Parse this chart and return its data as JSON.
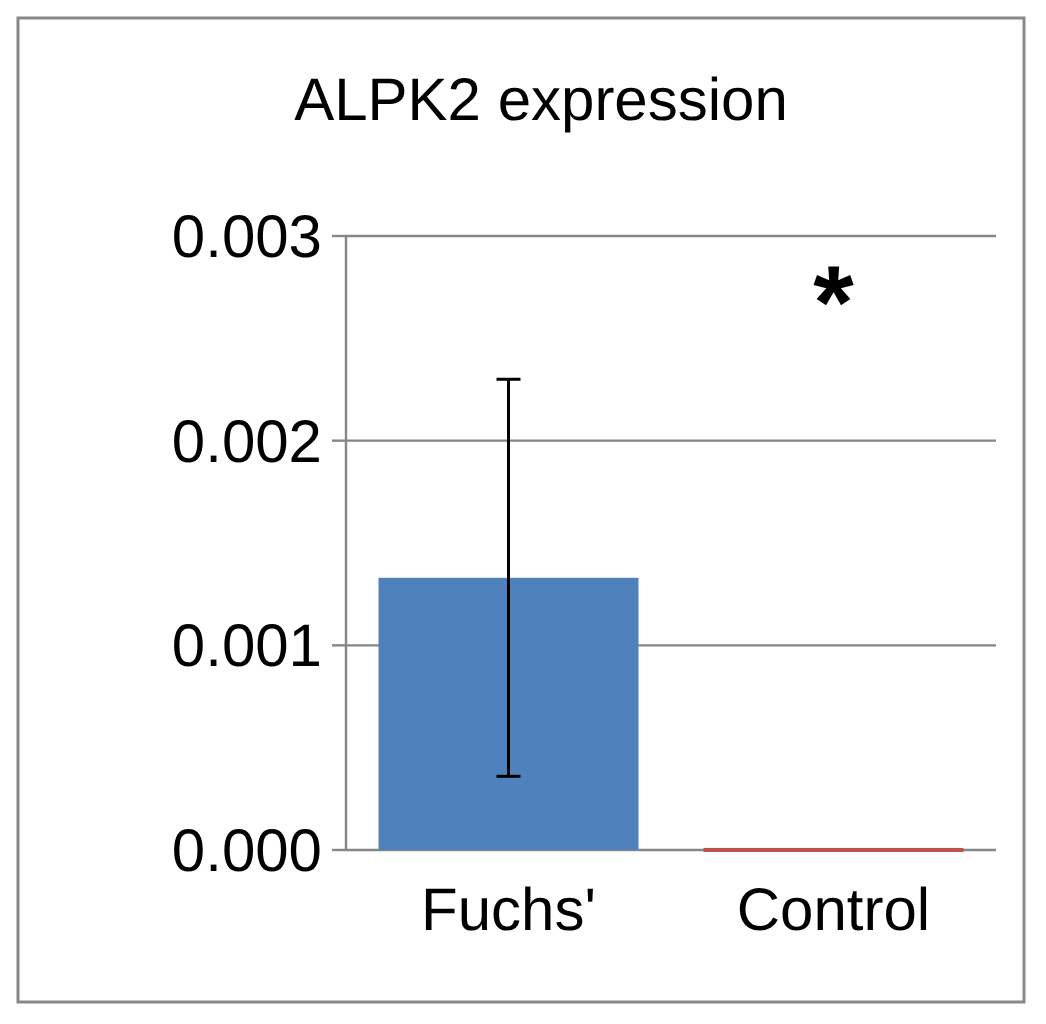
{
  "chart_data": {
    "type": "bar",
    "title": "ALPK2 expression",
    "categories": [
      "Fuchs'",
      "Control"
    ],
    "values": [
      0.00133,
      1e-05
    ],
    "colors": [
      "#4f81bd",
      "#c0504d"
    ],
    "errors": [
      0.00097,
      null
    ],
    "ylim": [
      0,
      0.003
    ],
    "yticks": [
      {
        "value": 0,
        "label": "0.000"
      },
      {
        "value": 0.001,
        "label": "0.001"
      },
      {
        "value": 0.002,
        "label": "0.002"
      },
      {
        "value": 0.003,
        "label": "0.003"
      }
    ],
    "grid": "y",
    "annotations": [
      "*"
    ]
  }
}
